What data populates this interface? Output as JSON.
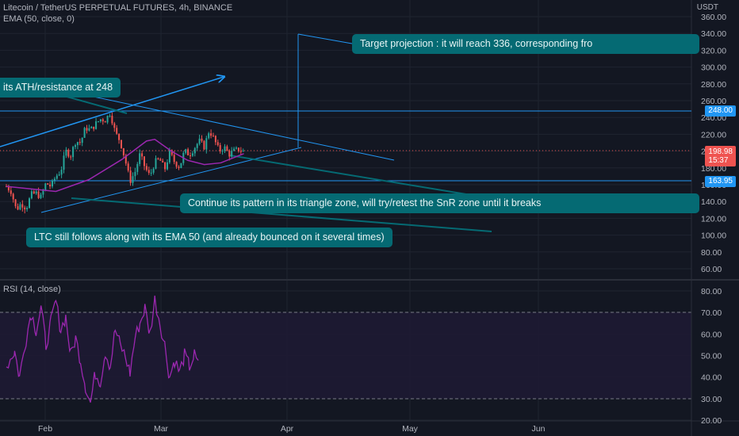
{
  "header": {
    "symbol_line": "Litecoin / TetherUS PERPETUAL FUTURES, 4h, BINANCE",
    "indicator_line": "EMA (50, close, 0)",
    "rsi_line": "RSI (14, close)",
    "currency": "USDT"
  },
  "price_axis": {
    "labels": [
      "360.00",
      "340.00",
      "320.00",
      "300.00",
      "280.00",
      "260.00",
      "240.00",
      "220.00",
      "200.00",
      "180.00",
      "160.00",
      "140.00",
      "120.00",
      "100.00",
      "80.00",
      "60.00"
    ],
    "current_price": "198.98",
    "countdown": "15:37",
    "resistance": "248.00",
    "support": "163.95"
  },
  "rsi_axis": {
    "labels": [
      "80.00",
      "70.00",
      "60.00",
      "50.00",
      "40.00",
      "30.00",
      "20.00"
    ],
    "upper": 70,
    "lower": 30
  },
  "time_axis": {
    "labels": [
      "Feb",
      "Mar",
      "Apr",
      "May",
      "Jun"
    ]
  },
  "annotations": {
    "ath": "its ATH/resistance at 248",
    "target": "Target projection : it will reach 336, corresponding fro",
    "pattern": "Continue its pattern in its triangle zone, will try/retest the SnR zone until it breaks",
    "ema": "LTC still follows along with its EMA 50 (and already bounced on it several times)"
  },
  "colors": {
    "background": "#131722",
    "candle_up": "#26a69a",
    "candle_down": "#ef5350",
    "ema": "#9c27b0",
    "rsi": "#9c27b0",
    "trendline": "#2196f3",
    "callout": "#056a73"
  },
  "chart_data": {
    "type": "candlestick",
    "price_points": [
      [
        0,
        158
      ],
      [
        0.03,
        152
      ],
      [
        0.06,
        130
      ],
      [
        0.09,
        138
      ],
      [
        0.12,
        132
      ],
      [
        0.15,
        148
      ],
      [
        0.18,
        150
      ],
      [
        0.21,
        145
      ],
      [
        0.24,
        162
      ],
      [
        0.27,
        158
      ],
      [
        0.3,
        170
      ],
      [
        0.33,
        176
      ],
      [
        0.36,
        200
      ],
      [
        0.39,
        195
      ],
      [
        0.42,
        212
      ],
      [
        0.45,
        210
      ],
      [
        0.48,
        228
      ],
      [
        0.51,
        225
      ],
      [
        0.54,
        232
      ],
      [
        0.57,
        238
      ],
      [
        0.6,
        237
      ],
      [
        0.63,
        246
      ],
      [
        0.66,
        222
      ],
      [
        0.69,
        212
      ],
      [
        0.72,
        190
      ],
      [
        0.75,
        164
      ],
      [
        0.78,
        175
      ],
      [
        0.81,
        196
      ],
      [
        0.84,
        181
      ],
      [
        0.87,
        170
      ],
      [
        0.9,
        187
      ],
      [
        0.93,
        190
      ],
      [
        0.96,
        178
      ],
      [
        0.99,
        198
      ],
      [
        1.02,
        187
      ],
      [
        1.05,
        181
      ],
      [
        1.08,
        200
      ],
      [
        1.11,
        196
      ],
      [
        1.14,
        204
      ],
      [
        1.17,
        212
      ],
      [
        1.2,
        205
      ],
      [
        1.23,
        225
      ],
      [
        1.26,
        214
      ],
      [
        1.29,
        200
      ],
      [
        1.32,
        205
      ],
      [
        1.35,
        196
      ],
      [
        1.38,
        200
      ],
      [
        1.41,
        202
      ],
      [
        1.44,
        199
      ]
    ],
    "ema_points": [
      [
        0,
        158
      ],
      [
        0.3,
        152
      ],
      [
        0.5,
        166
      ],
      [
        0.7,
        190
      ],
      [
        0.85,
        212
      ],
      [
        0.9,
        214
      ],
      [
        1.0,
        200
      ],
      [
        1.1,
        189
      ],
      [
        1.2,
        184
      ],
      [
        1.3,
        186
      ],
      [
        1.44,
        197
      ]
    ],
    "rsi_points": [
      [
        0,
        45
      ],
      [
        0.05,
        52
      ],
      [
        0.08,
        40
      ],
      [
        0.12,
        58
      ],
      [
        0.15,
        70
      ],
      [
        0.18,
        62
      ],
      [
        0.21,
        72
      ],
      [
        0.24,
        55
      ],
      [
        0.27,
        65
      ],
      [
        0.3,
        75
      ],
      [
        0.33,
        62
      ],
      [
        0.36,
        68
      ],
      [
        0.39,
        50
      ],
      [
        0.42,
        58
      ],
      [
        0.45,
        48
      ],
      [
        0.48,
        36
      ],
      [
        0.51,
        28
      ],
      [
        0.54,
        42
      ],
      [
        0.57,
        38
      ],
      [
        0.6,
        52
      ],
      [
        0.63,
        45
      ],
      [
        0.66,
        62
      ],
      [
        0.69,
        55
      ],
      [
        0.72,
        50
      ],
      [
        0.75,
        42
      ],
      [
        0.78,
        58
      ],
      [
        0.81,
        65
      ],
      [
        0.84,
        72
      ],
      [
        0.87,
        60
      ],
      [
        0.9,
        76
      ],
      [
        0.93,
        66
      ],
      [
        0.96,
        55
      ],
      [
        0.99,
        40
      ],
      [
        1.02,
        48
      ],
      [
        1.05,
        42
      ],
      [
        1.08,
        50
      ],
      [
        1.11,
        45
      ],
      [
        1.14,
        50
      ],
      [
        1.17,
        44
      ]
    ],
    "horizontal_levels": [
      248,
      163.95
    ],
    "target_level": 336,
    "ylim": [
      55,
      365
    ]
  }
}
